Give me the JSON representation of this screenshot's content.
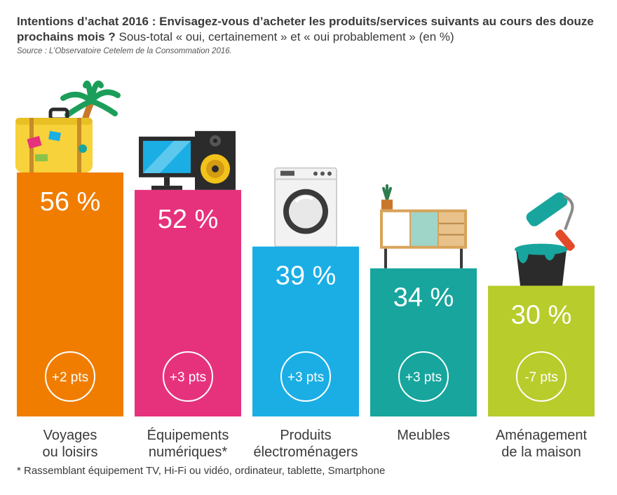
{
  "header": {
    "title_bold": "Intentions d’achat 2016 : Envisagez-vous d’acheter les produits/services suivants au cours des douze prochains mois ?",
    "title_rest": "Sous-total « oui, certainement » et « oui probablement » (en %)",
    "source": "Source : L’Observatoire Cetelem de la Consommation 2016."
  },
  "footnote": "* Rassemblant équipement TV, Hi-Fi ou vidéo, ordinateur, tablette, Smartphone",
  "colors": {
    "voyages": "#f07d00",
    "equipements": "#e6327d",
    "produits": "#1aaee5",
    "meubles": "#17a59d",
    "amenagement": "#b8cc2b"
  },
  "chart_data": {
    "type": "bar",
    "categories": [
      [
        "Voyages",
        "ou loisirs"
      ],
      [
        "Équipements",
        "numériques*"
      ],
      [
        "Produits",
        "électroménagers"
      ],
      [
        "Meubles"
      ],
      [
        "Aménagement",
        "de la maison"
      ]
    ],
    "values": [
      56,
      52,
      39,
      34,
      30
    ],
    "value_labels": [
      "56 %",
      "52 %",
      "39 %",
      "34 %",
      "30 %"
    ],
    "changes": [
      "+2 pts",
      "+3 pts",
      "+3 pts",
      "+3 pts",
      "-7 pts"
    ],
    "colors": [
      "#f07d00",
      "#e6327d",
      "#1aaee5",
      "#17a59d",
      "#b8cc2b"
    ],
    "icons": [
      "suitcase-palm-icon",
      "tv-speaker-icon",
      "washing-machine-icon",
      "sideboard-icon",
      "paint-bucket-roller-icon"
    ]
  }
}
